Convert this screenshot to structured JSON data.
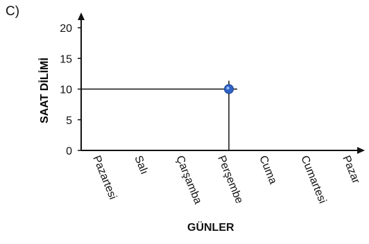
{
  "panel_label": "C)",
  "chart_data": {
    "type": "scatter",
    "title": "",
    "xlabel": "GÜNLER",
    "ylabel": "SAAT DİLİMİ",
    "categories": [
      "Pazartesi",
      "Salı",
      "Çarşamba",
      "Perşembe",
      "Cuma",
      "Cumartesi",
      "Pazar"
    ],
    "ylim": [
      0,
      20
    ],
    "yticks": [
      0,
      5,
      10,
      15,
      20
    ],
    "points": [
      {
        "x": "Perşembe",
        "y": 10
      }
    ],
    "reference_lines": true,
    "grid": false,
    "marker_color": "#2f63c6",
    "axis_color": "#111111"
  }
}
